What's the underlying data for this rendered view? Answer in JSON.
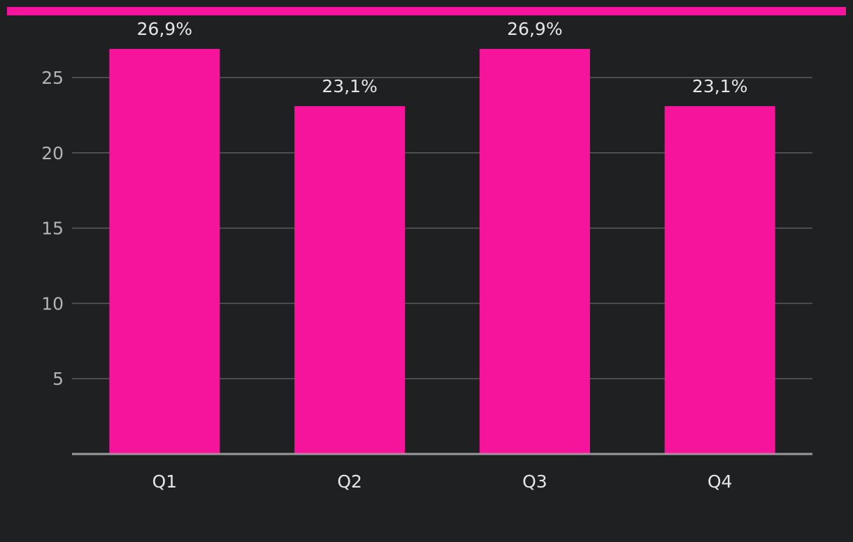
{
  "colors": {
    "background": "#1f2022",
    "accent": "#f5149b",
    "bar": "#f5149b",
    "grid": "#5a5a5a",
    "axis": "#9a9a9a",
    "text": "#e6e6e6",
    "tick_text": "#b4b4b4"
  },
  "chart_data": {
    "type": "bar",
    "categories": [
      "Q1",
      "Q2",
      "Q3",
      "Q4"
    ],
    "values": [
      26.9,
      23.1,
      26.9,
      23.1
    ],
    "data_labels": [
      "26,9%",
      "23,1%",
      "26,9%",
      "23,1%"
    ],
    "yticks": [
      5,
      10,
      15,
      20,
      25
    ],
    "ylim": [
      0,
      26.9
    ],
    "grid": true,
    "legend": "none"
  }
}
